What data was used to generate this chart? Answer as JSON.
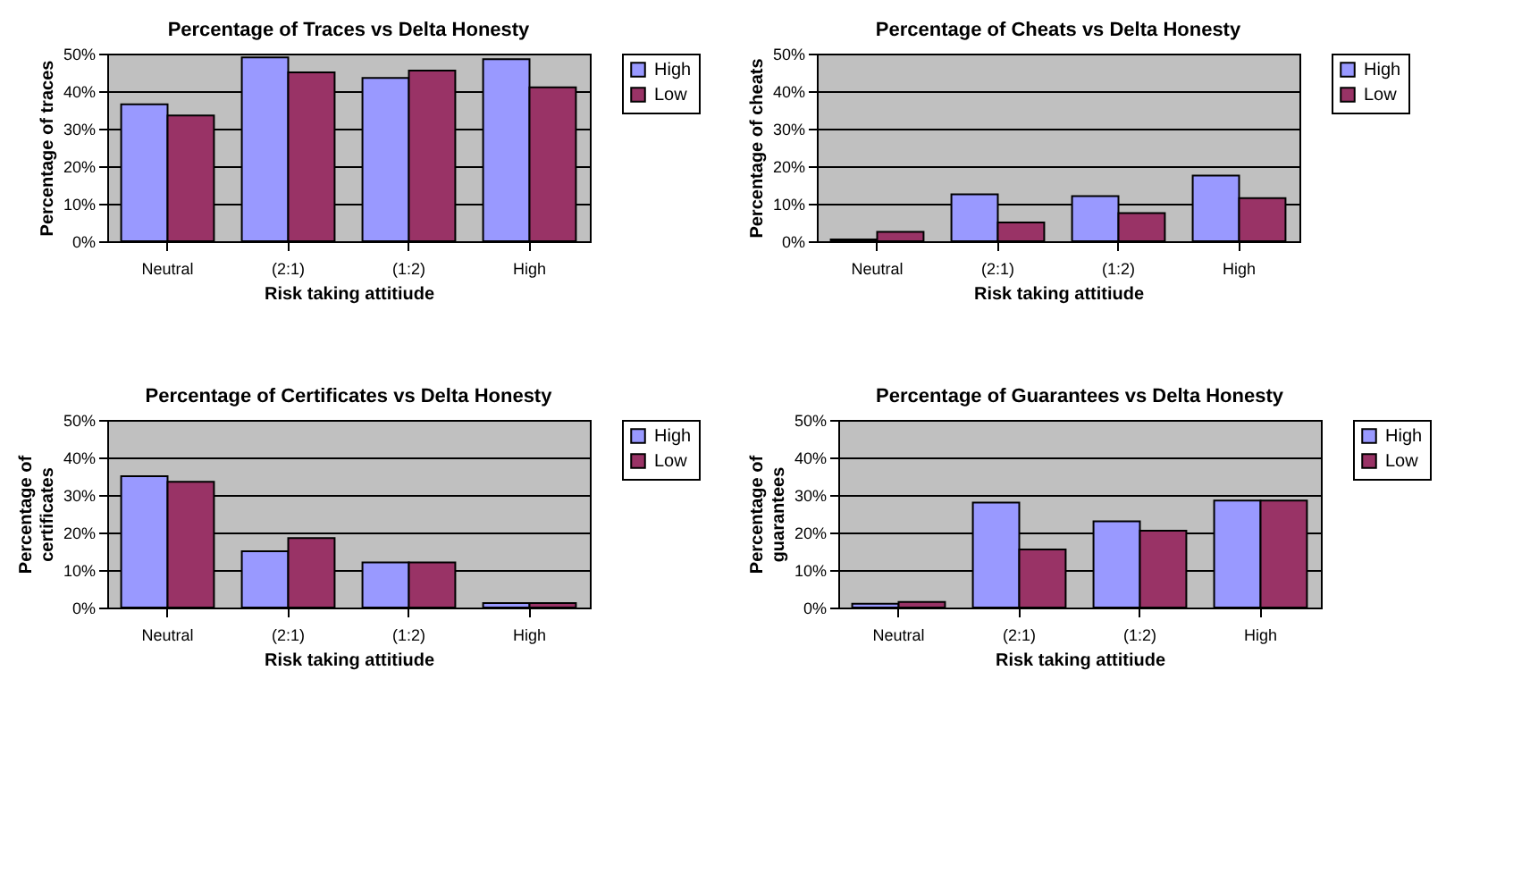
{
  "chart_data": [
    {
      "type": "bar",
      "title": "Percentage of Traces vs Delta Honesty",
      "xlabel": "Risk taking attitiude",
      "ylabel": "Percentage of traces",
      "categories": [
        "Neutral",
        "(2:1)",
        "(1:2)",
        "High"
      ],
      "series": [
        {
          "name": "High",
          "color": "#9999ff",
          "values": [
            36.5,
            49,
            43.5,
            48.5
          ]
        },
        {
          "name": "Low",
          "color": "#993366",
          "values": [
            33.5,
            45,
            45.5,
            41
          ]
        }
      ],
      "ylim": [
        0,
        50
      ],
      "yticks": [
        {
          "value": 0,
          "label": "0%"
        },
        {
          "value": 10,
          "label": "10%"
        },
        {
          "value": 20,
          "label": "20%"
        },
        {
          "value": 30,
          "label": "30%"
        },
        {
          "value": 40,
          "label": "40%"
        },
        {
          "value": 50,
          "label": "50%"
        }
      ],
      "grid": "y",
      "legend": "right"
    },
    {
      "type": "bar",
      "title": "Percentage of Cheats vs Delta Honesty",
      "xlabel": "Risk taking attitiude",
      "ylabel": "Percentage of cheats",
      "categories": [
        "Neutral",
        "(2:1)",
        "(1:2)",
        "High"
      ],
      "series": [
        {
          "name": "High",
          "color": "#9999ff",
          "values": [
            0.5,
            12.5,
            12,
            17.5
          ]
        },
        {
          "name": "Low",
          "color": "#993366",
          "values": [
            2.5,
            5,
            7.5,
            11.5
          ]
        }
      ],
      "ylim": [
        0,
        50
      ],
      "yticks": [
        {
          "value": 0,
          "label": "0%"
        },
        {
          "value": 10,
          "label": "10%"
        },
        {
          "value": 20,
          "label": "20%"
        },
        {
          "value": 30,
          "label": "30%"
        },
        {
          "value": 40,
          "label": "40%"
        },
        {
          "value": 50,
          "label": "50%"
        }
      ],
      "grid": "y",
      "legend": "right"
    },
    {
      "type": "bar",
      "title": "Percentage of Certificates vs Delta Honesty",
      "xlabel": "Risk taking attitiude",
      "ylabel": "Percentage of certificates",
      "categories": [
        "Neutral",
        "(2:1)",
        "(1:2)",
        "High"
      ],
      "series": [
        {
          "name": "High",
          "color": "#9999ff",
          "values": [
            35,
            15,
            12,
            1.2
          ]
        },
        {
          "name": "Low",
          "color": "#993366",
          "values": [
            33.5,
            18.5,
            12,
            1.2
          ]
        }
      ],
      "ylim": [
        0,
        50
      ],
      "yticks": [
        {
          "value": 0,
          "label": "0%"
        },
        {
          "value": 10,
          "label": "10%"
        },
        {
          "value": 20,
          "label": "20%"
        },
        {
          "value": 30,
          "label": "30%"
        },
        {
          "value": 40,
          "label": "40%"
        },
        {
          "value": 50,
          "label": "50%"
        }
      ],
      "grid": "y",
      "legend": "right"
    },
    {
      "type": "bar",
      "title": "Percentage of Guarantees vs Delta Honesty",
      "xlabel": "Risk taking attitiude",
      "ylabel": "Percentage of guarantees",
      "categories": [
        "Neutral",
        "(2:1)",
        "(1:2)",
        "High"
      ],
      "series": [
        {
          "name": "High",
          "color": "#9999ff",
          "values": [
            1,
            28,
            23,
            28.5
          ]
        },
        {
          "name": "Low",
          "color": "#993366",
          "values": [
            1.5,
            15.5,
            20.5,
            28.5
          ]
        }
      ],
      "ylim": [
        0,
        50
      ],
      "yticks": [
        {
          "value": 0,
          "label": "0%"
        },
        {
          "value": 10,
          "label": "10%"
        },
        {
          "value": 20,
          "label": "20%"
        },
        {
          "value": 30,
          "label": "30%"
        },
        {
          "value": 40,
          "label": "40%"
        },
        {
          "value": 50,
          "label": "50%"
        }
      ],
      "grid": "y",
      "legend": "right"
    }
  ]
}
